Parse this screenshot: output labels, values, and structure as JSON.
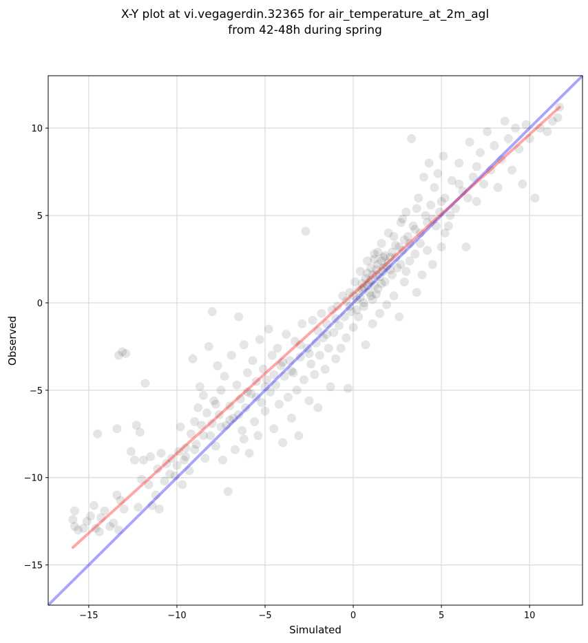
{
  "chart_data": {
    "type": "scatter",
    "title": "X-Y plot at vi.vegagerdin.32365 for air_temperature_at_2m_agl",
    "subtitle": "from 42-48h during spring",
    "xlabel": "Simulated",
    "ylabel": "Observed",
    "xlim": [
      -17.3,
      13.0
    ],
    "ylim": [
      -17.3,
      13.0
    ],
    "xticks": [
      -15,
      -10,
      -5,
      0,
      5,
      10
    ],
    "yticks": [
      -15,
      -10,
      -5,
      0,
      5,
      10
    ],
    "xtick_labels": [
      "−15",
      "−10",
      "−5",
      "0",
      "5",
      "10"
    ],
    "ytick_labels": [
      "−15",
      "−10",
      "−5",
      "0",
      "5",
      "10"
    ],
    "grid": true,
    "point_color": "#000000",
    "point_opacity": 0.1,
    "reference_line": {
      "x": [
        -17.3,
        13.0
      ],
      "y": [
        -17.3,
        13.0
      ],
      "color": "#0000ff"
    },
    "regression_line": {
      "x": [
        -15.9,
        11.7
      ],
      "y": [
        -14.0,
        11.2
      ],
      "color": "#ff0000"
    },
    "points": [
      [
        -15.9,
        -12.4
      ],
      [
        -15.8,
        -12.8
      ],
      [
        -15.6,
        -13.0
      ],
      [
        -15.3,
        -12.9
      ],
      [
        -15.1,
        -12.5
      ],
      [
        -14.9,
        -12.2
      ],
      [
        -14.7,
        -11.6
      ],
      [
        -14.6,
        -12.9
      ],
      [
        -14.4,
        -13.1
      ],
      [
        -14.3,
        -12.3
      ],
      [
        -14.1,
        -11.9
      ],
      [
        -13.8,
        -12.8
      ],
      [
        -13.6,
        -12.6
      ],
      [
        -13.4,
        -11.0
      ],
      [
        -13.3,
        -13.0
      ],
      [
        -13.2,
        -11.3
      ],
      [
        -13.0,
        -11.8
      ],
      [
        -15.8,
        -11.9
      ],
      [
        -14.5,
        -7.5
      ],
      [
        -13.4,
        -7.2
      ],
      [
        -13.3,
        -3.0
      ],
      [
        -13.1,
        -2.8
      ],
      [
        -12.9,
        -2.9
      ],
      [
        -12.6,
        -8.5
      ],
      [
        -12.4,
        -9.0
      ],
      [
        -12.3,
        -7.0
      ],
      [
        -12.1,
        -7.4
      ],
      [
        -12.2,
        -11.7
      ],
      [
        -12.0,
        -10.1
      ],
      [
        -11.9,
        -9.0
      ],
      [
        -11.8,
        -4.6
      ],
      [
        -11.6,
        -10.4
      ],
      [
        -11.5,
        -8.8
      ],
      [
        -11.4,
        -11.6
      ],
      [
        -11.2,
        -11.0
      ],
      [
        -11.1,
        -9.5
      ],
      [
        -11.0,
        -11.8
      ],
      [
        -10.9,
        -8.6
      ],
      [
        -10.7,
        -10.2
      ],
      [
        -10.6,
        -9.2
      ],
      [
        -10.4,
        -9.8
      ],
      [
        -10.3,
        -8.9
      ],
      [
        -10.1,
        -9.9
      ],
      [
        -10.0,
        -9.3
      ],
      [
        -9.9,
        -8.5
      ],
      [
        -9.8,
        -7.1
      ],
      [
        -9.7,
        -10.4
      ],
      [
        -9.6,
        -9.0
      ],
      [
        -9.5,
        -8.3
      ],
      [
        -9.3,
        -9.6
      ],
      [
        -9.2,
        -7.5
      ],
      [
        -9.1,
        -3.2
      ],
      [
        -9.0,
        -6.8
      ],
      [
        -8.9,
        -8.1
      ],
      [
        -8.8,
        -6.0
      ],
      [
        -8.7,
        -4.8
      ],
      [
        -8.6,
        -7.0
      ],
      [
        -8.5,
        -5.3
      ],
      [
        -8.4,
        -8.9
      ],
      [
        -8.3,
        -6.3
      ],
      [
        -8.2,
        -2.5
      ],
      [
        -8.1,
        -7.6
      ],
      [
        -8.0,
        -0.5
      ],
      [
        -7.9,
        -5.6
      ],
      [
        -7.8,
        -8.2
      ],
      [
        -7.7,
        -3.6
      ],
      [
        -7.6,
        -6.4
      ],
      [
        -7.5,
        -5.0
      ],
      [
        -7.4,
        -9.0
      ],
      [
        -7.3,
        -4.2
      ],
      [
        -7.2,
        -7.0
      ],
      [
        -7.1,
        -10.8
      ],
      [
        -7.0,
        -5.9
      ],
      [
        -6.9,
        -3.0
      ],
      [
        -6.8,
        -6.6
      ],
      [
        -6.7,
        -8.4
      ],
      [
        -6.6,
        -4.7
      ],
      [
        -6.5,
        -0.8
      ],
      [
        -6.4,
        -5.5
      ],
      [
        -6.3,
        -7.3
      ],
      [
        -6.2,
        -2.4
      ],
      [
        -6.1,
        -6.0
      ],
      [
        -6.0,
        -4.0
      ],
      [
        -5.9,
        -8.6
      ],
      [
        -5.8,
        -5.2
      ],
      [
        -5.7,
        -3.3
      ],
      [
        -5.6,
        -6.8
      ],
      [
        -5.5,
        -4.5
      ],
      [
        -5.4,
        -7.6
      ],
      [
        -5.3,
        -2.1
      ],
      [
        -5.2,
        -5.7
      ],
      [
        -5.1,
        -3.8
      ],
      [
        -5.0,
        -6.2
      ],
      [
        -4.9,
        -4.4
      ],
      [
        -4.8,
        -1.5
      ],
      [
        -4.7,
        -5.1
      ],
      [
        -4.6,
        -3.0
      ],
      [
        -4.5,
        -7.2
      ],
      [
        -4.4,
        -4.7
      ],
      [
        -4.3,
        -2.6
      ],
      [
        -4.2,
        -5.8
      ],
      [
        -4.1,
        -3.6
      ],
      [
        -4.0,
        -8.0
      ],
      [
        -3.9,
        -4.2
      ],
      [
        -3.8,
        -1.8
      ],
      [
        -3.7,
        -5.4
      ],
      [
        -3.6,
        -3.3
      ],
      [
        -3.5,
        -6.6
      ],
      [
        -3.4,
        -4.0
      ],
      [
        -3.3,
        -2.2
      ],
      [
        -3.2,
        -5.0
      ],
      [
        -3.1,
        -7.6
      ],
      [
        -3.0,
        -3.1
      ],
      [
        -2.9,
        -1.2
      ],
      [
        -2.8,
        -4.4
      ],
      [
        -2.7,
        4.1
      ],
      [
        -2.6,
        -2.6
      ],
      [
        -2.5,
        -5.6
      ],
      [
        -2.4,
        -3.5
      ],
      [
        -2.3,
        -1.0
      ],
      [
        -2.2,
        -4.1
      ],
      [
        -2.1,
        -2.3
      ],
      [
        -2.0,
        -6.0
      ],
      [
        -1.9,
        -3.0
      ],
      [
        -1.8,
        -0.6
      ],
      [
        -1.7,
        -2.0
      ],
      [
        -1.6,
        -3.8
      ],
      [
        -1.5,
        -1.2
      ],
      [
        -1.4,
        -2.6
      ],
      [
        -1.3,
        -4.8
      ],
      [
        -1.2,
        -0.4
      ],
      [
        -1.1,
        -1.7
      ],
      [
        -1.0,
        -3.2
      ],
      [
        -0.9,
        -0.2
      ],
      [
        -0.8,
        -1.3
      ],
      [
        -0.7,
        -2.6
      ],
      [
        -0.6,
        0.4
      ],
      [
        -0.5,
        -0.8
      ],
      [
        -0.4,
        -2.0
      ],
      [
        -0.3,
        -4.9
      ],
      [
        -0.2,
        0.6
      ],
      [
        -0.1,
        -0.5
      ],
      [
        0.0,
        -1.4
      ],
      [
        0.1,
        1.2
      ],
      [
        0.2,
        0.2
      ],
      [
        0.3,
        -0.8
      ],
      [
        0.4,
        1.8
      ],
      [
        0.5,
        0.8
      ],
      [
        0.6,
        -0.2
      ],
      [
        0.7,
        -2.4
      ],
      [
        0.8,
        2.4
      ],
      [
        0.9,
        1.2
      ],
      [
        1.0,
        0.4
      ],
      [
        1.1,
        -1.2
      ],
      [
        1.2,
        2.8
      ],
      [
        1.3,
        1.6
      ],
      [
        1.4,
        0.8
      ],
      [
        1.5,
        -0.6
      ],
      [
        1.6,
        3.4
      ],
      [
        1.7,
        2.0
      ],
      [
        1.8,
        1.2
      ],
      [
        1.9,
        -0.1
      ],
      [
        2.0,
        4.0
      ],
      [
        2.1,
        2.6
      ],
      [
        2.2,
        1.6
      ],
      [
        2.3,
        0.4
      ],
      [
        2.4,
        3.3
      ],
      [
        2.5,
        2.0
      ],
      [
        2.6,
        -0.8
      ],
      [
        2.7,
        4.6
      ],
      [
        2.8,
        3.0
      ],
      [
        2.9,
        1.2
      ],
      [
        3.0,
        5.2
      ],
      [
        3.1,
        3.8
      ],
      [
        3.2,
        2.4
      ],
      [
        3.3,
        9.4
      ],
      [
        3.4,
        4.4
      ],
      [
        3.5,
        2.8
      ],
      [
        3.6,
        0.6
      ],
      [
        3.7,
        6.0
      ],
      [
        3.8,
        4.0
      ],
      [
        3.9,
        1.6
      ],
      [
        4.0,
        7.2
      ],
      [
        4.1,
        5.0
      ],
      [
        4.2,
        3.0
      ],
      [
        4.3,
        8.0
      ],
      [
        4.4,
        5.6
      ],
      [
        4.5,
        2.2
      ],
      [
        4.6,
        6.6
      ],
      [
        4.7,
        4.4
      ],
      [
        4.8,
        7.4
      ],
      [
        4.9,
        5.2
      ],
      [
        5.0,
        3.2
      ],
      [
        5.1,
        8.4
      ],
      [
        5.2,
        6.0
      ],
      [
        5.4,
        4.4
      ],
      [
        5.6,
        7.0
      ],
      [
        5.8,
        5.4
      ],
      [
        6.0,
        8.0
      ],
      [
        6.2,
        6.4
      ],
      [
        6.4,
        3.2
      ],
      [
        6.6,
        9.2
      ],
      [
        6.8,
        7.2
      ],
      [
        7.0,
        5.8
      ],
      [
        7.2,
        8.6
      ],
      [
        7.4,
        6.8
      ],
      [
        7.6,
        9.8
      ],
      [
        7.8,
        7.6
      ],
      [
        8.0,
        9.0
      ],
      [
        8.2,
        6.6
      ],
      [
        8.4,
        8.2
      ],
      [
        8.6,
        10.4
      ],
      [
        8.8,
        9.4
      ],
      [
        9.0,
        7.6
      ],
      [
        9.2,
        10.0
      ],
      [
        9.4,
        8.8
      ],
      [
        9.6,
        6.8
      ],
      [
        9.8,
        10.2
      ],
      [
        10.0,
        9.4
      ],
      [
        10.3,
        6.0
      ],
      [
        10.6,
        10.0
      ],
      [
        11.0,
        9.8
      ],
      [
        11.3,
        10.4
      ],
      [
        11.6,
        10.6
      ],
      [
        11.7,
        11.2
      ],
      [
        0.6,
        0.9
      ],
      [
        0.8,
        1.0
      ],
      [
        1.0,
        1.3
      ],
      [
        1.1,
        1.6
      ],
      [
        1.3,
        1.9
      ],
      [
        1.4,
        2.2
      ],
      [
        1.6,
        2.4
      ],
      [
        1.2,
        1.0
      ],
      [
        0.9,
        0.6
      ],
      [
        1.5,
        1.5
      ],
      [
        1.7,
        1.8
      ],
      [
        1.9,
        2.1
      ],
      [
        0.7,
        1.4
      ],
      [
        1.0,
        2.0
      ],
      [
        1.3,
        0.5
      ],
      [
        1.8,
        2.7
      ],
      [
        2.0,
        2.3
      ],
      [
        0.4,
        0.3
      ],
      [
        0.5,
        1.1
      ],
      [
        1.1,
        0.2
      ],
      [
        2.2,
        2.9
      ],
      [
        2.4,
        2.6
      ],
      [
        1.6,
        1.1
      ],
      [
        0.3,
        0.7
      ],
      [
        1.4,
        2.9
      ],
      [
        0.8,
        1.7
      ],
      [
        2.1,
        1.9
      ],
      [
        1.2,
        2.5
      ],
      [
        2.6,
        3.2
      ],
      [
        2.9,
        3.6
      ],
      [
        -0.2,
        -0.2
      ],
      [
        0.0,
        0.4
      ],
      [
        0.2,
        -0.4
      ],
      [
        -0.4,
        0.1
      ],
      [
        0.6,
        0.0
      ],
      [
        1.7,
        2.6
      ],
      [
        3.2,
        3.4
      ],
      [
        3.5,
        4.2
      ],
      [
        2.3,
        3.8
      ],
      [
        2.7,
        2.2
      ],
      [
        -1.0,
        -0.9
      ],
      [
        -1.5,
        -1.8
      ],
      [
        -2.0,
        -1.6
      ],
      [
        -2.5,
        -2.9
      ],
      [
        -3.0,
        -2.4
      ],
      [
        -3.5,
        -3.9
      ],
      [
        -4.0,
        -3.4
      ],
      [
        -4.5,
        -4.1
      ],
      [
        -5.0,
        -4.8
      ],
      [
        -5.5,
        -5.4
      ],
      [
        -6.0,
        -5.1
      ],
      [
        -6.5,
        -6.4
      ],
      [
        -7.0,
        -6.7
      ],
      [
        -7.5,
        -7.1
      ],
      [
        -8.0,
        -6.9
      ],
      [
        -8.5,
        -7.6
      ],
      [
        -9.0,
        -8.4
      ],
      [
        -9.5,
        -8.8
      ],
      [
        -6.2,
        -7.8
      ],
      [
        -7.8,
        -5.8
      ],
      [
        4.5,
        4.8
      ],
      [
        5.0,
        5.8
      ],
      [
        5.5,
        5.0
      ],
      [
        6.0,
        6.8
      ],
      [
        6.5,
        6.0
      ],
      [
        7.0,
        7.8
      ],
      [
        3.8,
        3.4
      ],
      [
        4.2,
        4.6
      ],
      [
        5.2,
        4.0
      ],
      [
        2.8,
        4.8
      ],
      [
        3.0,
        1.8
      ],
      [
        3.6,
        5.4
      ]
    ]
  }
}
